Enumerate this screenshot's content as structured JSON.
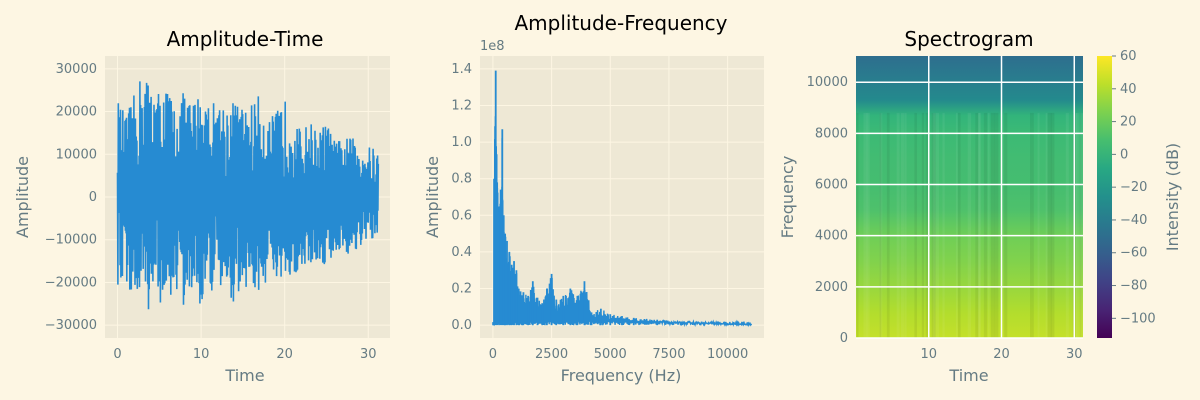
{
  "chart_data": [
    {
      "type": "line",
      "title": "Amplitude-Time",
      "xlabel": "Time",
      "ylabel": "Amplitude",
      "xlim": [
        -1.5,
        32.6
      ],
      "ylim": [
        -33000,
        33000
      ],
      "xticks": [
        0,
        10,
        20,
        30
      ],
      "yticks": [
        -30000,
        -20000,
        -10000,
        0,
        10000,
        20000,
        30000
      ],
      "ytick_labels": [
        "−30000",
        "−20000",
        "−10000",
        "0",
        "10000",
        "20000",
        "30000"
      ],
      "grid": true,
      "series": [
        {
          "color": "#268bd2",
          "x_range": [
            0,
            31.2
          ],
          "envelope_x": [
            0,
            1,
            2,
            3,
            4,
            5,
            6,
            7,
            8,
            9,
            10,
            11,
            12,
            13,
            14,
            15,
            16,
            17,
            18,
            19,
            20,
            21,
            22,
            23,
            24,
            25,
            26,
            27,
            28,
            29,
            30,
            31.2
          ],
          "envelope_max": [
            23000,
            19000,
            24000,
            30000,
            27000,
            25000,
            26000,
            21000,
            25000,
            22000,
            26000,
            22000,
            23000,
            22000,
            23000,
            21000,
            22000,
            24000,
            18000,
            20000,
            23000,
            20000,
            15000,
            18000,
            15000,
            18000,
            13000,
            14000,
            14000,
            13000,
            12000,
            11000
          ],
          "envelope_min": [
            -23000,
            -20000,
            -25000,
            -28000,
            -26000,
            -25000,
            -25000,
            -22000,
            -27000,
            -22000,
            -26000,
            -22000,
            -24000,
            -22000,
            -25000,
            -21000,
            -22000,
            -24000,
            -19000,
            -21000,
            -23000,
            -19000,
            -16000,
            -17000,
            -15000,
            -17000,
            -13000,
            -13000,
            -14000,
            -12000,
            -11000,
            -10000
          ]
        }
      ]
    },
    {
      "type": "line",
      "title": "Amplitude-Frequency",
      "xlabel": "Frequency (Hz)",
      "ylabel": "Amplitude",
      "y_offset_text": "1e8",
      "xlim": [
        -550,
        11550
      ],
      "ylim": [
        -0.07,
        1.47
      ],
      "xticks": [
        0,
        2500,
        5000,
        7500,
        10000
      ],
      "yticks": [
        0.0,
        0.2,
        0.4,
        0.6,
        0.8,
        1.0,
        1.2,
        1.4
      ],
      "ytick_labels": [
        "0.0",
        "0.2",
        "0.4",
        "0.6",
        "0.8",
        "1.0",
        "1.2",
        "1.4"
      ],
      "grid": true,
      "series": [
        {
          "color": "#268bd2",
          "peaks_x": [
            50,
            120,
            180,
            260,
            330,
            400,
            460,
            520,
            600,
            700,
            800,
            900,
            1000,
            1100,
            1300,
            1500,
            1700,
            1900,
            2100,
            2300,
            2500,
            2700,
            3000,
            3300,
            3600,
            3900,
            4200,
            4600,
            5000,
            5500,
            6000,
            7000,
            8000,
            9000,
            10000,
            11000
          ],
          "peaks_y": [
            0.8,
            1.39,
            0.78,
            0.62,
            0.74,
            1.07,
            0.6,
            0.5,
            0.46,
            0.4,
            0.33,
            0.35,
            0.3,
            0.2,
            0.18,
            0.16,
            0.24,
            0.15,
            0.12,
            0.2,
            0.28,
            0.14,
            0.16,
            0.2,
            0.16,
            0.24,
            0.07,
            0.09,
            0.06,
            0.05,
            0.04,
            0.03,
            0.02,
            0.015,
            0.008,
            0.005
          ],
          "floor": 0.02
        }
      ]
    },
    {
      "type": "heatmap",
      "title": "Spectrogram",
      "xlabel": "Time",
      "ylabel": "Frequency",
      "xlim": [
        0,
        31.2
      ],
      "ylim": [
        0,
        11025
      ],
      "xticks": [
        10,
        20,
        30
      ],
      "yticks": [
        0,
        2000,
        4000,
        6000,
        8000,
        10000
      ],
      "grid": true,
      "colormap": "viridis",
      "colorbar": {
        "label": "Intensity (dB)",
        "range": [
          -112,
          60
        ],
        "ticks": [
          60,
          40,
          20,
          0,
          -20,
          -40,
          -60,
          -80,
          -100
        ],
        "tick_labels": [
          "60",
          "40",
          "20",
          "0",
          "−20",
          "−40",
          "−60",
          "−80",
          "−100"
        ]
      },
      "intensity_profile_db": [
        {
          "freq": 0,
          "db": 45
        },
        {
          "freq": 1000,
          "db": 40
        },
        {
          "freq": 2000,
          "db": 33
        },
        {
          "freq": 3000,
          "db": 27
        },
        {
          "freq": 4000,
          "db": 22
        },
        {
          "freq": 5000,
          "db": 11
        },
        {
          "freq": 6000,
          "db": 8
        },
        {
          "freq": 7000,
          "db": 7
        },
        {
          "freq": 8000,
          "db": 5
        },
        {
          "freq": 8700,
          "db": 0
        },
        {
          "freq": 9300,
          "db": -30
        },
        {
          "freq": 11025,
          "db": -50
        }
      ]
    }
  ]
}
